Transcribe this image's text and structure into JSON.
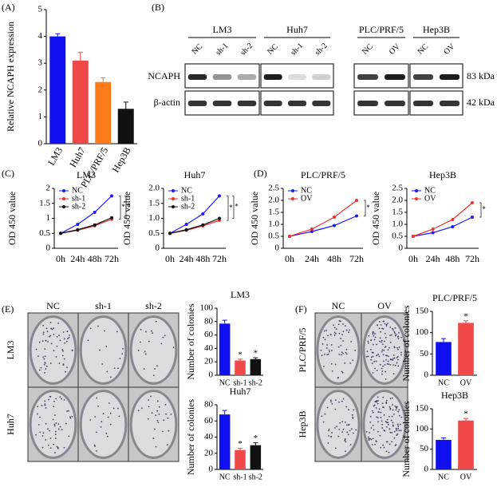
{
  "panel_labels": [
    "(A)",
    "(B)",
    "(C)",
    "(D)",
    "(E)",
    "(F)"
  ],
  "blot": {
    "groups": [
      {
        "name": "LM3",
        "lanes": [
          "NC",
          "sh-1",
          "sh-2"
        ]
      },
      {
        "name": "Huh7",
        "lanes": [
          "NC",
          "sh-1",
          "sh-2"
        ]
      },
      {
        "name": "PLC/PRF/5",
        "lanes": [
          "NC",
          "OV"
        ]
      },
      {
        "name": "Hep3B",
        "lanes": [
          "NC",
          "OV"
        ]
      }
    ],
    "rows": [
      {
        "name": "NCAPH",
        "size": "83 kDa"
      },
      {
        "name": "β-actin",
        "size": "42 kDa"
      }
    ]
  },
  "colony_assays": [
    {
      "columns": [
        "NC",
        "sh-1",
        "sh-2"
      ],
      "rows": [
        "LM3",
        "Huh7"
      ]
    },
    {
      "columns": [
        "NC",
        "OV"
      ],
      "rows": [
        "PLC/PRF/5",
        "Hep3B"
      ]
    }
  ],
  "chart_data": [
    {
      "type": "bar",
      "ylabel": "Relative NCAPH expression",
      "categories": [
        "LM3",
        "Huh7",
        "PLC/PRF/5",
        "Hep3B"
      ],
      "values": [
        4.0,
        3.1,
        2.3,
        1.3
      ],
      "errors": [
        0.1,
        0.3,
        0.15,
        0.25
      ],
      "colors": [
        "#1010f0",
        "#f04848",
        "#ff7a1a",
        "#111111"
      ],
      "ylim": [
        0,
        5
      ],
      "yticks": [
        0,
        1,
        2,
        3,
        4,
        5
      ]
    },
    {
      "type": "line",
      "title": "LM3",
      "ylabel": "OD 450 value",
      "categories": [
        "0h",
        "24h",
        "48h",
        "72h"
      ],
      "series": [
        {
          "name": "NC",
          "color": "#1a1aff",
          "values": [
            0.5,
            0.8,
            1.2,
            1.75
          ]
        },
        {
          "name": "sh-1",
          "color": "#f03030",
          "values": [
            0.5,
            0.6,
            0.75,
            0.97
          ]
        },
        {
          "name": "sh-2",
          "color": "#111111",
          "values": [
            0.5,
            0.62,
            0.78,
            1.02
          ]
        }
      ],
      "annotations": [
        "*",
        "*"
      ],
      "ylim": [
        0,
        2
      ],
      "yticks": [
        0,
        0.5,
        1,
        1.5,
        2
      ]
    },
    {
      "type": "line",
      "title": "Huh7",
      "ylabel": "OD 450 value",
      "categories": [
        "0h",
        "24h",
        "48h",
        "72h"
      ],
      "series": [
        {
          "name": "NC",
          "color": "#1a1aff",
          "values": [
            0.5,
            0.8,
            1.15,
            1.75
          ]
        },
        {
          "name": "sh-1",
          "color": "#f03030",
          "values": [
            0.5,
            0.6,
            0.75,
            0.93
          ]
        },
        {
          "name": "sh-2",
          "color": "#111111",
          "values": [
            0.5,
            0.62,
            0.78,
            1.0
          ]
        }
      ],
      "annotations": [
        "*",
        "*"
      ],
      "ylim": [
        0,
        2
      ],
      "yticks": [
        0,
        0.5,
        {
          "value": 1,
          "label": "1.0"
        },
        1.5,
        {
          "value": 2,
          "label": "2.0"
        }
      ]
    },
    {
      "type": "line",
      "title": "PLC/PRF/5",
      "ylabel": "OD 450 value",
      "categories": [
        "0h",
        "24h",
        "48h",
        "72h"
      ],
      "series": [
        {
          "name": "NC",
          "color": "#1a1aff",
          "values": [
            0.5,
            0.7,
            0.95,
            1.35
          ]
        },
        {
          "name": "OV",
          "color": "#f03030",
          "values": [
            0.5,
            0.8,
            1.3,
            2.0
          ]
        }
      ],
      "annotations": [
        "*"
      ],
      "ylim": [
        0,
        2.5
      ],
      "yticks": [
        0,
        0.5,
        {
          "value": 1,
          "label": "1.0"
        },
        1.5,
        {
          "value": 2,
          "label": "2.0"
        },
        2.5
      ]
    },
    {
      "type": "line",
      "title": "Hep3B",
      "ylabel": "OD 450 value",
      "categories": [
        "0h",
        "24h",
        "48h",
        "72h"
      ],
      "series": [
        {
          "name": "NC",
          "color": "#1a1aff",
          "values": [
            0.5,
            0.65,
            0.9,
            1.3
          ]
        },
        {
          "name": "OV",
          "color": "#f03030",
          "values": [
            0.5,
            0.8,
            1.2,
            1.9
          ]
        }
      ],
      "annotations": [
        "*"
      ],
      "ylim": [
        0,
        2.5
      ],
      "yticks": [
        0,
        0.5,
        {
          "value": 1,
          "label": "1.0"
        },
        1.5,
        {
          "value": 2,
          "label": "2.0"
        },
        2.5
      ]
    },
    {
      "type": "bar",
      "title": "LM3",
      "ylabel": "Number of colonies",
      "categories": [
        "NC",
        "sh-1",
        "sh-2"
      ],
      "values": [
        77,
        22,
        24
      ],
      "errors": [
        5,
        2,
        2
      ],
      "colors": [
        "#1010f0",
        "#f04848",
        "#111111"
      ],
      "stars": [
        null,
        "*",
        "*"
      ],
      "ylim": [
        0,
        100
      ],
      "yticks": [
        0,
        20,
        40,
        60,
        80,
        100
      ]
    },
    {
      "type": "bar",
      "title": "Huh7",
      "ylabel": "Number of colonies",
      "categories": [
        "NC",
        "sh-1",
        "sh-2"
      ],
      "values": [
        68,
        24,
        30
      ],
      "errors": [
        5,
        2,
        3
      ],
      "colors": [
        "#1010f0",
        "#f04848",
        "#111111"
      ],
      "stars": [
        null,
        "*",
        "*"
      ],
      "ylim": [
        0,
        80
      ],
      "yticks": [
        0,
        20,
        40,
        60,
        80
      ]
    },
    {
      "type": "bar",
      "title": "PLC/PRF/5",
      "ylabel": "Number of colonies",
      "categories": [
        "NC",
        "OV"
      ],
      "values": [
        78,
        123
      ],
      "errors": [
        8,
        5
      ],
      "colors": [
        "#1010f0",
        "#f04848"
      ],
      "stars": [
        null,
        "*"
      ],
      "ylim": [
        0,
        150
      ],
      "yticks": [
        0,
        50,
        100,
        150
      ]
    },
    {
      "type": "bar",
      "title": "Hep3B",
      "ylabel": "Number of colonies",
      "categories": [
        "NC",
        "OV"
      ],
      "values": [
        73,
        121
      ],
      "errors": [
        5,
        5
      ],
      "colors": [
        "#1010f0",
        "#f04848"
      ],
      "stars": [
        null,
        "*"
      ],
      "ylim": [
        0,
        150
      ],
      "yticks": [
        0,
        50,
        100,
        150
      ]
    }
  ]
}
